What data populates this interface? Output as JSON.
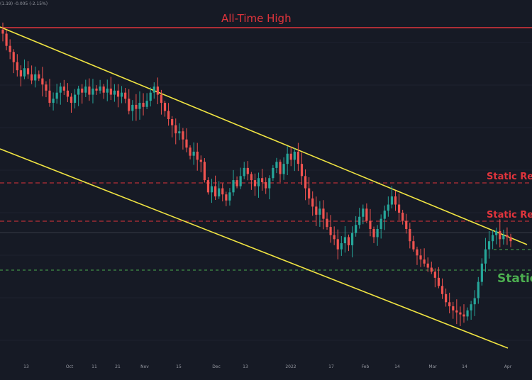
{
  "header": {
    "ohlc_text": "(1.19) -0.005 (-2.15%)"
  },
  "chart_data": {
    "type": "candlestick",
    "x_ticks": [
      "13",
      "Oct",
      "11",
      "21",
      "Nov",
      "15",
      "Dec",
      "13",
      "2022",
      "17",
      "Feb",
      "14",
      "Mar",
      "14",
      "Apr"
    ],
    "annotations": {
      "ath_label": "All-Time High",
      "resistance_1_label": "Static Resi",
      "resistance_2_label": "Static Resi",
      "support_label": "Static"
    },
    "colors": {
      "background": "#161a25",
      "up": "#26a69a",
      "down": "#ef5350",
      "channel": "#f0e442",
      "ath_line": "#e0343c",
      "resistance": "#e0343c",
      "support": "#4caf50",
      "ath_text": "#e0343c",
      "support_text": "#4caf50",
      "tick_text": "#9598a1"
    },
    "candle_closes": [
      1.42,
      1.36,
      1.33,
      1.28,
      1.24,
      1.21,
      1.25,
      1.22,
      1.19,
      1.22,
      1.2,
      1.17,
      1.14,
      1.08,
      1.1,
      1.13,
      1.16,
      1.14,
      1.11,
      1.08,
      1.12,
      1.15,
      1.13,
      1.16,
      1.12,
      1.15,
      1.14,
      1.16,
      1.13,
      1.15,
      1.12,
      1.14,
      1.11,
      1.13,
      1.1,
      1.04,
      1.07,
      1.05,
      1.08,
      1.06,
      1.09,
      1.13,
      1.16,
      1.12,
      1.08,
      1.04,
      1.0,
      0.97,
      0.93,
      0.94,
      0.9,
      0.86,
      0.82,
      0.84,
      0.8,
      0.79,
      0.7,
      0.64,
      0.67,
      0.62,
      0.66,
      0.63,
      0.6,
      0.64,
      0.7,
      0.67,
      0.72,
      0.76,
      0.73,
      0.7,
      0.67,
      0.71,
      0.69,
      0.66,
      0.71,
      0.76,
      0.79,
      0.73,
      0.78,
      0.83,
      0.8,
      0.84,
      0.78,
      0.72,
      0.66,
      0.61,
      0.57,
      0.53,
      0.56,
      0.51,
      0.47,
      0.43,
      0.41,
      0.36,
      0.39,
      0.42,
      0.38,
      0.44,
      0.48,
      0.52,
      0.56,
      0.5,
      0.46,
      0.42,
      0.46,
      0.51,
      0.55,
      0.58,
      0.62,
      0.58,
      0.54,
      0.5,
      0.46,
      0.4,
      0.36,
      0.33,
      0.31,
      0.29,
      0.27,
      0.25,
      0.22,
      0.18,
      0.14,
      0.1,
      0.08,
      0.06,
      0.05,
      0.04,
      0.03,
      0.06,
      0.09,
      0.12,
      0.2,
      0.29,
      0.36,
      0.4,
      0.43,
      0.45,
      0.41,
      0.43,
      0.42,
      0.4
    ]
  }
}
